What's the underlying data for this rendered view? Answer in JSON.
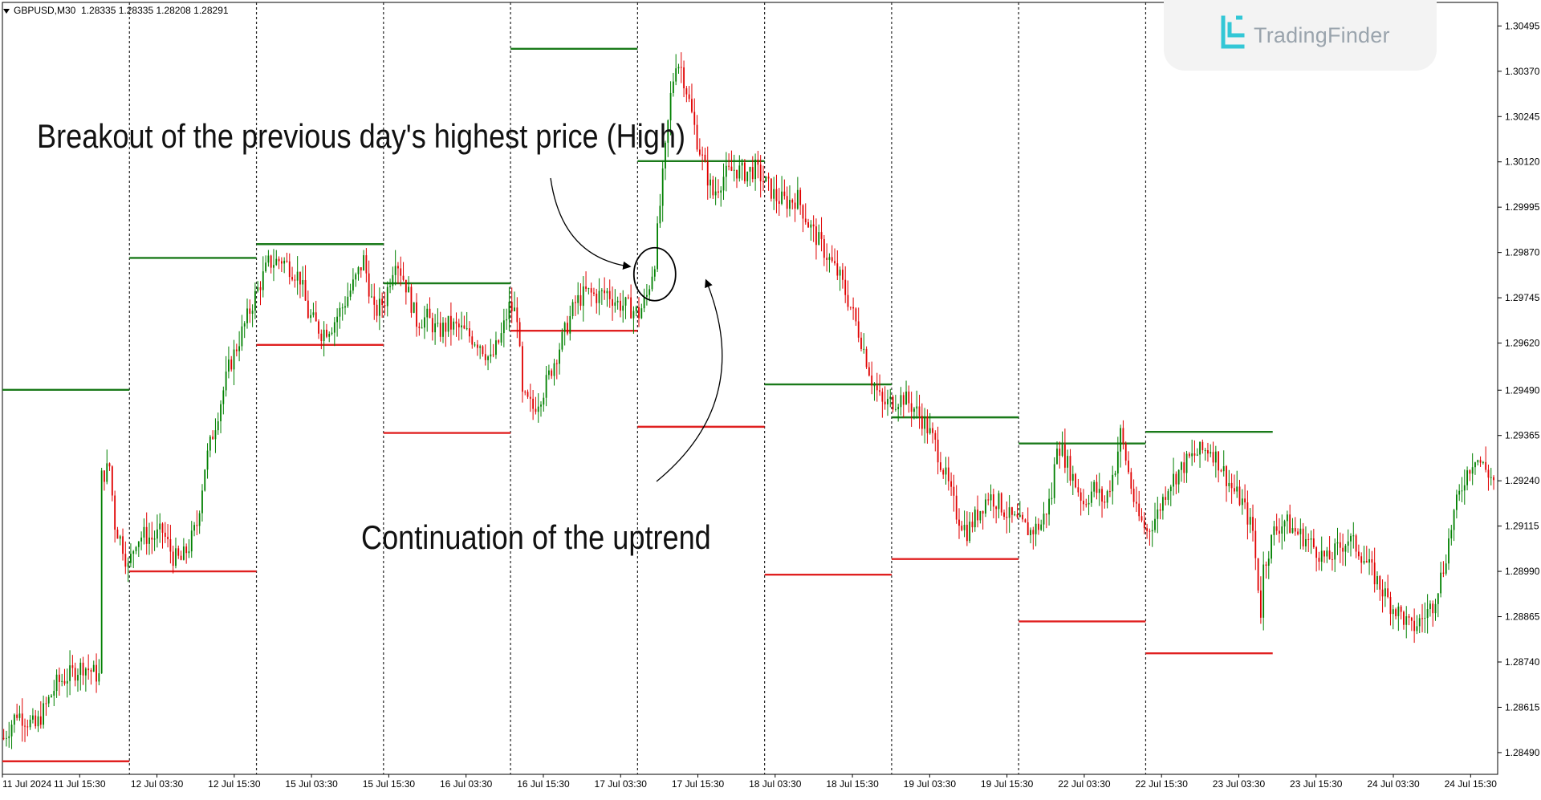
{
  "symbol": "GBPUSD,M30",
  "ohlc": "1.28335 1.28335 1.28208 1.28291",
  "watermark": "TradingFinder",
  "annotations": {
    "breakout": "Breakout of the previous day's highest price (High)",
    "continuation": "Continuation of the uptrend"
  },
  "colors": {
    "bull": "#008000",
    "bear": "#e00000",
    "high_line": "#1a7a1a",
    "low_line": "#e02020",
    "separator": "#222222",
    "axis": "#000000"
  },
  "chart_data": {
    "type": "candlestick",
    "timeframe": "M30",
    "ylim": [
      1.2843,
      1.3056
    ],
    "y_ticks": [
      "1.30495",
      "1.30370",
      "1.30245",
      "1.30120",
      "1.29995",
      "1.29870",
      "1.29745",
      "1.29620",
      "1.29490",
      "1.29365",
      "1.29240",
      "1.29115",
      "1.28990",
      "1.28865",
      "1.28740",
      "1.28615",
      "1.28490"
    ],
    "x_ticks": [
      "11 Jul 2024",
      "11 Jul 15:30",
      "12 Jul 03:30",
      "12 Jul 15:30",
      "15 Jul 03:30",
      "15 Jul 15:30",
      "16 Jul 03:30",
      "16 Jul 15:30",
      "17 Jul 03:30",
      "17 Jul 15:30",
      "18 Jul 03:30",
      "18 Jul 15:30",
      "19 Jul 03:30",
      "19 Jul 15:30",
      "22 Jul 03:30",
      "22 Jul 15:30",
      "23 Jul 03:30",
      "23 Jul 15:30",
      "24 Jul 03:30",
      "24 Jul 15:30"
    ],
    "days": [
      {
        "start": "11 Jul 2024",
        "high": 1.29491,
        "low": 1.28466
      },
      {
        "start": "12 Jul 2024",
        "high": 1.29855,
        "low": 1.2899
      },
      {
        "start": "15 Jul 2024",
        "high": 1.29893,
        "low": 1.29615
      },
      {
        "start": "16 Jul 2024",
        "high": 1.29785,
        "low": 1.29372
      },
      {
        "start": "17 Jul 2024",
        "high": 1.30432,
        "low": 1.29654
      },
      {
        "start": "18 Jul 2024",
        "high": 1.30122,
        "low": 1.29389
      },
      {
        "start": "19 Jul 2024",
        "high": 1.29506,
        "low": 1.28981
      },
      {
        "start": "22 Jul 2024",
        "high": 1.29415,
        "low": 1.29024
      },
      {
        "start": "23 Jul 2024",
        "high": 1.29343,
        "low": 1.28852
      },
      {
        "start": "24 Jul 2024",
        "high": 1.29375,
        "low": 1.28764
      }
    ],
    "path": [
      [
        0,
        1.2853
      ],
      [
        5,
        1.286
      ],
      [
        12,
        1.2856
      ],
      [
        20,
        1.2868
      ],
      [
        30,
        1.2873
      ],
      [
        36,
        1.287
      ],
      [
        37,
        1.2925
      ],
      [
        40,
        1.2928
      ],
      [
        42,
        1.2912
      ],
      [
        45,
        1.2906
      ],
      [
        47,
        1.29
      ],
      [
        50,
        1.2908
      ],
      [
        53,
        1.2909
      ],
      [
        56,
        1.2908
      ],
      [
        60,
        1.291
      ],
      [
        64,
        1.2903
      ],
      [
        67,
        1.2902
      ],
      [
        70,
        1.2906
      ],
      [
        73,
        1.2912
      ],
      [
        76,
        1.2928
      ],
      [
        80,
        1.294
      ],
      [
        85,
        1.2955
      ],
      [
        90,
        1.2965
      ],
      [
        95,
        1.2975
      ],
      [
        100,
        1.2984
      ],
      [
        105,
        1.2985
      ],
      [
        108,
        1.2983
      ],
      [
        112,
        1.298
      ],
      [
        115,
        1.297
      ],
      [
        120,
        1.2965
      ],
      [
        124,
        1.2967
      ],
      [
        128,
        1.2972
      ],
      [
        132,
        1.2978
      ],
      [
        136,
        1.2985
      ],
      [
        140,
        1.297
      ],
      [
        144,
        1.2974
      ],
      [
        148,
        1.2986
      ],
      [
        152,
        1.2978
      ],
      [
        156,
        1.2968
      ],
      [
        160,
        1.2969
      ],
      [
        164,
        1.2965
      ],
      [
        168,
        1.2967
      ],
      [
        172,
        1.2966
      ],
      [
        176,
        1.2964
      ],
      [
        180,
        1.2962
      ],
      [
        184,
        1.2957
      ],
      [
        188,
        1.2964
      ],
      [
        191,
        1.2972
      ],
      [
        194,
        1.297
      ],
      [
        196,
        1.2947
      ],
      [
        200,
        1.2944
      ],
      [
        204,
        1.2949
      ],
      [
        208,
        1.2957
      ],
      [
        212,
        1.2965
      ],
      [
        216,
        1.2973
      ],
      [
        220,
        1.2976
      ],
      [
        224,
        1.2975
      ],
      [
        228,
        1.2976
      ],
      [
        232,
        1.2973
      ],
      [
        236,
        1.2972
      ],
      [
        240,
        1.297
      ],
      [
        243,
        1.2975
      ],
      [
        246,
        1.2985
      ],
      [
        248,
        1.3
      ],
      [
        250,
        1.3015
      ],
      [
        252,
        1.303
      ],
      [
        254,
        1.304
      ],
      [
        256,
        1.3038
      ],
      [
        258,
        1.3032
      ],
      [
        260,
        1.3025
      ],
      [
        262,
        1.3018
      ],
      [
        265,
        1.301
      ],
      [
        268,
        1.3003
      ],
      [
        272,
        1.3008
      ],
      [
        276,
        1.301
      ],
      [
        280,
        1.3009
      ],
      [
        284,
        1.301
      ],
      [
        288,
        1.3006
      ],
      [
        292,
        1.3002
      ],
      [
        296,
        1.3001
      ],
      [
        300,
        1.3002
      ],
      [
        304,
        1.2995
      ],
      [
        308,
        1.299
      ],
      [
        312,
        1.2985
      ],
      [
        316,
        1.298
      ],
      [
        320,
        1.2972
      ],
      [
        324,
        1.2963
      ],
      [
        328,
        1.2952
      ],
      [
        332,
        1.2945
      ],
      [
        336,
        1.2946
      ],
      [
        340,
        1.2947
      ],
      [
        344,
        1.2944
      ],
      [
        348,
        1.294
      ],
      [
        352,
        1.2934
      ],
      [
        356,
        1.2925
      ],
      [
        360,
        1.2915
      ],
      [
        364,
        1.291
      ],
      [
        368,
        1.2915
      ],
      [
        372,
        1.292
      ],
      [
        376,
        1.2918
      ],
      [
        380,
        1.2914
      ],
      [
        384,
        1.2912
      ],
      [
        388,
        1.291
      ],
      [
        392,
        1.2912
      ],
      [
        396,
        1.292
      ],
      [
        398,
        1.2935
      ],
      [
        400,
        1.2932
      ],
      [
        404,
        1.2925
      ],
      [
        408,
        1.2918
      ],
      [
        412,
        1.2922
      ],
      [
        416,
        1.2918
      ],
      [
        420,
        1.2928
      ],
      [
        422,
        1.2937
      ],
      [
        424,
        1.293
      ],
      [
        428,
        1.2915
      ],
      [
        432,
        1.291
      ],
      [
        436,
        1.2915
      ],
      [
        440,
        1.2923
      ],
      [
        448,
        1.293
      ],
      [
        452,
        1.2932
      ],
      [
        456,
        1.2933
      ],
      [
        460,
        1.2928
      ],
      [
        464,
        1.2922
      ],
      [
        468,
        1.2918
      ],
      [
        472,
        1.291
      ],
      [
        474,
        1.2895
      ],
      [
        475,
        1.2888
      ],
      [
        476,
        1.29
      ],
      [
        480,
        1.291
      ],
      [
        484,
        1.2913
      ],
      [
        488,
        1.291
      ],
      [
        492,
        1.2908
      ],
      [
        496,
        1.2905
      ],
      [
        500,
        1.2902
      ],
      [
        504,
        1.2905
      ],
      [
        508,
        1.2908
      ],
      [
        512,
        1.2905
      ],
      [
        516,
        1.29
      ],
      [
        520,
        1.2895
      ],
      [
        524,
        1.289
      ],
      [
        528,
        1.2887
      ],
      [
        532,
        1.2883
      ],
      [
        536,
        1.2886
      ],
      [
        540,
        1.289
      ],
      [
        544,
        1.29
      ],
      [
        548,
        1.2915
      ],
      [
        552,
        1.2925
      ],
      [
        556,
        1.2931
      ],
      [
        560,
        1.2927
      ],
      [
        563,
        1.2924
      ]
    ]
  }
}
